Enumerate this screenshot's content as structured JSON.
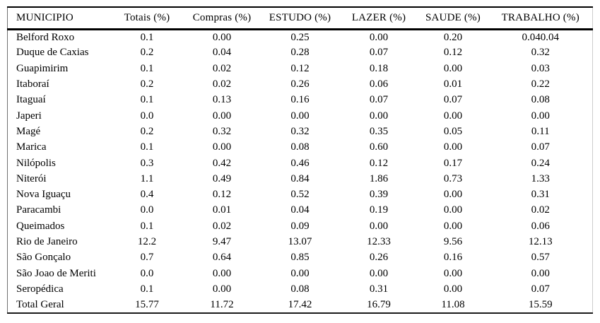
{
  "chart_data": {
    "type": "table",
    "title": "Municipality trip percentages by purpose",
    "columns": [
      "MUNICIPIO",
      "Totais (%)",
      "Compras (%)",
      "ESTUDO (%)",
      "LAZER (%)",
      "SAUDE (%)",
      "TRABALHO (%)"
    ],
    "rows": [
      [
        "Belford Roxo",
        "0.1",
        "0.00",
        "0.25",
        "0.00",
        "0.20",
        "0.040.04"
      ],
      [
        "Duque de Caxias",
        "0.2",
        "0.04",
        "0.28",
        "0.07",
        "0.12",
        "0.32"
      ],
      [
        "Guapimirim",
        "0.1",
        "0.02",
        "0.12",
        "0.18",
        "0.00",
        "0.03"
      ],
      [
        "Itaboraí",
        "0.2",
        "0.02",
        "0.26",
        "0.06",
        "0.01",
        "0.22"
      ],
      [
        "Itaguaí",
        "0.1",
        "0.13",
        "0.16",
        "0.07",
        "0.07",
        "0.08"
      ],
      [
        "Japeri",
        "0.0",
        "0.00",
        "0.00",
        "0.00",
        "0.00",
        "0.00"
      ],
      [
        "Magé",
        "0.2",
        "0.32",
        "0.32",
        "0.35",
        "0.05",
        "0.11"
      ],
      [
        "Marica",
        "0.1",
        "0.00",
        "0.08",
        "0.60",
        "0.00",
        "0.07"
      ],
      [
        "Nilópolis",
        "0.3",
        "0.42",
        "0.46",
        "0.12",
        "0.17",
        "0.24"
      ],
      [
        "Niterói",
        "1.1",
        "0.49",
        "0.84",
        "1.86",
        "0.73",
        "1.33"
      ],
      [
        "Nova Iguaçu",
        "0.4",
        "0.12",
        "0.52",
        "0.39",
        "0.00",
        "0.31"
      ],
      [
        "Paracambi",
        "0.0",
        "0.01",
        "0.04",
        "0.19",
        "0.00",
        "0.02"
      ],
      [
        "Queimados",
        "0.1",
        "0.02",
        "0.09",
        "0.00",
        "0.00",
        "0.06"
      ],
      [
        "Rio de Janeiro",
        "12.2",
        "9.47",
        "13.07",
        "12.33",
        "9.56",
        "12.13"
      ],
      [
        "São Gonçalo",
        "0.7",
        "0.64",
        "0.85",
        "0.26",
        "0.16",
        "0.57"
      ],
      [
        "São Joao de Meriti",
        "0.0",
        "0.00",
        "0.00",
        "0.00",
        "0.00",
        "0.00"
      ],
      [
        "Seropédica",
        "0.1",
        "0.00",
        "0.08",
        "0.31",
        "0.00",
        "0.07"
      ],
      [
        "Total Geral",
        "15.77",
        "11.72",
        "17.42",
        "16.79",
        "11.08",
        "15.59"
      ]
    ]
  },
  "colors": {
    "text": "#000000",
    "background": "#ffffff",
    "top_rule": "#000000",
    "header_rule": "#000000",
    "bottom_rule": "#1a1a1a",
    "left_border": "#707070",
    "right_border": "#cccccc"
  }
}
